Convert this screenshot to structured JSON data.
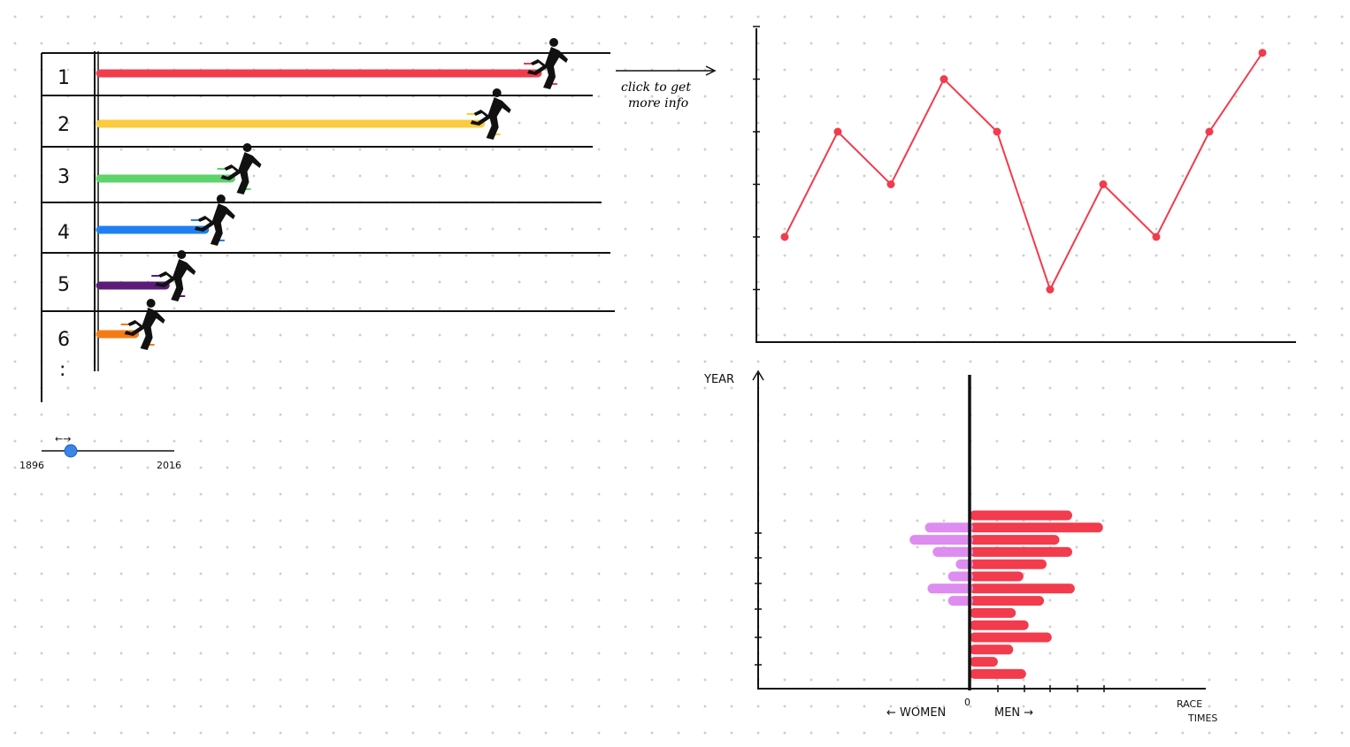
{
  "ranking": {
    "ranks": [
      "1",
      "2",
      "3",
      "4",
      "5",
      "6"
    ],
    "more_marker": ":",
    "bars": [
      {
        "rank": "1",
        "color": "#f23b4c",
        "progress": 1.0
      },
      {
        "rank": "2",
        "color": "#fbcb3f",
        "progress": 0.87
      },
      {
        "rank": "3",
        "color": "#5dd36a",
        "progress": 0.3
      },
      {
        "rank": "4",
        "color": "#1f7ff2",
        "progress": 0.24
      },
      {
        "rank": "5",
        "color": "#5c1a7a",
        "progress": 0.15
      },
      {
        "rank": "6",
        "color": "#f57a14",
        "progress": 0.08
      }
    ],
    "icon": "running-man-icon"
  },
  "slider": {
    "min_label": "1896",
    "max_label": "2016",
    "arrows": "←→",
    "value_fraction": 0.22,
    "knob_color": "#3a86e8"
  },
  "annotation": {
    "line1": "click to get",
    "line2": "more info"
  },
  "chart_data": [
    {
      "type": "line",
      "color": "#f23b4c",
      "x": [
        1,
        2,
        3,
        4,
        5,
        6,
        7,
        8,
        9,
        10
      ],
      "values": [
        2,
        4,
        3,
        5,
        4,
        1,
        3,
        2,
        4,
        5.5
      ],
      "ylim": [
        0,
        6
      ]
    },
    {
      "type": "bar",
      "orientation": "horizontal-diverging",
      "ylabel": "YEAR",
      "xlabel": "RACE TIMES",
      "center_label": "0",
      "left_label": "← WOMEN",
      "right_label": "MEN →",
      "series": [
        {
          "name": "WOMEN",
          "color": "#dd8cf0",
          "values": [
            0,
            1.6,
            2.2,
            1.3,
            0.4,
            0.7,
            1.5,
            0.7,
            0,
            0,
            0,
            0,
            0,
            0,
            0
          ]
        },
        {
          "name": "MEN",
          "color": "#f23b4c",
          "values": [
            4.0,
            5.2,
            3.5,
            4.0,
            3.0,
            2.1,
            4.1,
            2.9,
            1.8,
            2.3,
            3.2,
            1.7,
            1.1,
            2.2,
            0
          ]
        }
      ]
    }
  ]
}
